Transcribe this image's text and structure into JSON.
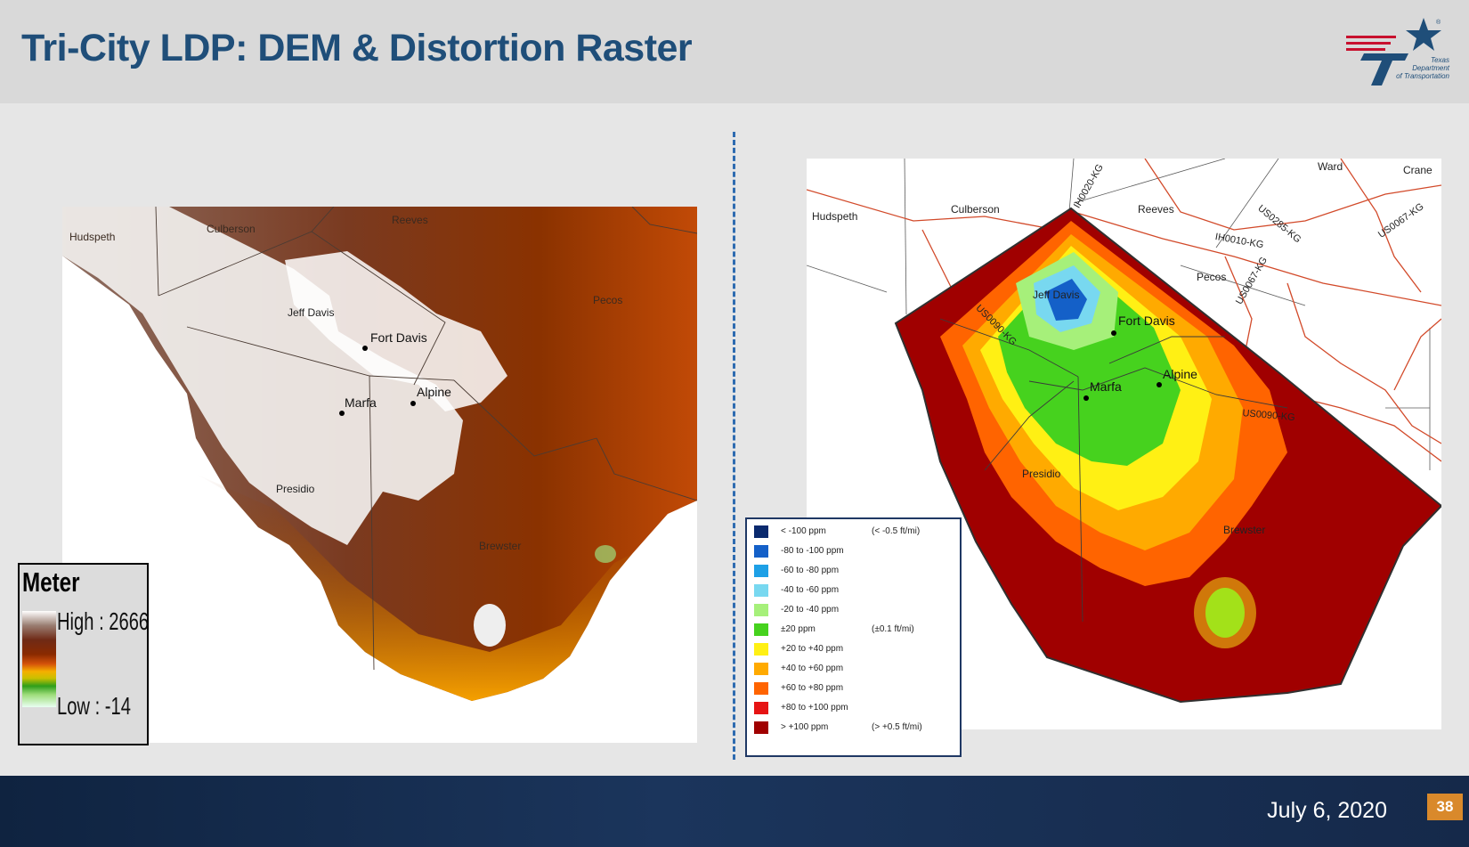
{
  "header": {
    "title": "Tri-City LDP: DEM & Distortion Raster",
    "logo_text": "Texas\nDepartment\nof Transportation",
    "logo_mark": "®"
  },
  "dem_map": {
    "counties": [
      "Hudspeth",
      "Culberson",
      "Reeves",
      "Jeff Davis",
      "Pecos",
      "Presidio",
      "Brewster"
    ],
    "cities": [
      "Fort Davis",
      "Alpine",
      "Marfa"
    ],
    "legend": {
      "title": "Meter",
      "high": "High : 2666",
      "low": "Low : -14"
    }
  },
  "distortion_map": {
    "counties": [
      "Hudspeth",
      "Culberson",
      "Reeves",
      "Jeff Davis",
      "Pecos",
      "Presidio",
      "Brewster",
      "Ward",
      "Crane"
    ],
    "cities": [
      "Fort Davis",
      "Alpine",
      "Marfa"
    ],
    "routes": [
      "IH0020-KG",
      "IH0010-KG",
      "US0285-KG",
      "US0067-KG",
      "US0067-KG",
      "US0090-KG",
      "US0090-KG"
    ],
    "legend": [
      {
        "label": "< -100 ppm",
        "note": "(< -0.5 ft/mi)",
        "color": "#0a2a6e"
      },
      {
        "label": "-80 to -100 ppm",
        "note": "",
        "color": "#1460c8"
      },
      {
        "label": "-60 to -80 ppm",
        "note": "",
        "color": "#1ea0e6"
      },
      {
        "label": "-40 to -60 ppm",
        "note": "",
        "color": "#78d8f0"
      },
      {
        "label": "-20 to -40 ppm",
        "note": "",
        "color": "#a6f07a"
      },
      {
        "label": "±20 ppm",
        "note": "(±0.1 ft/mi)",
        "color": "#46d21e"
      },
      {
        "label": "+20 to +40 ppm",
        "note": "",
        "color": "#fff014"
      },
      {
        "label": "+40 to +60 ppm",
        "note": "",
        "color": "#ffaa00"
      },
      {
        "label": "+60 to +80 ppm",
        "note": "",
        "color": "#ff6400"
      },
      {
        "label": "+80 to +100 ppm",
        "note": "",
        "color": "#e61414"
      },
      {
        "label": "> +100 ppm",
        "note": "(> +0.5 ft/mi)",
        "color": "#a00000"
      }
    ]
  },
  "footer": {
    "date": "July 6, 2020",
    "page": "38"
  }
}
